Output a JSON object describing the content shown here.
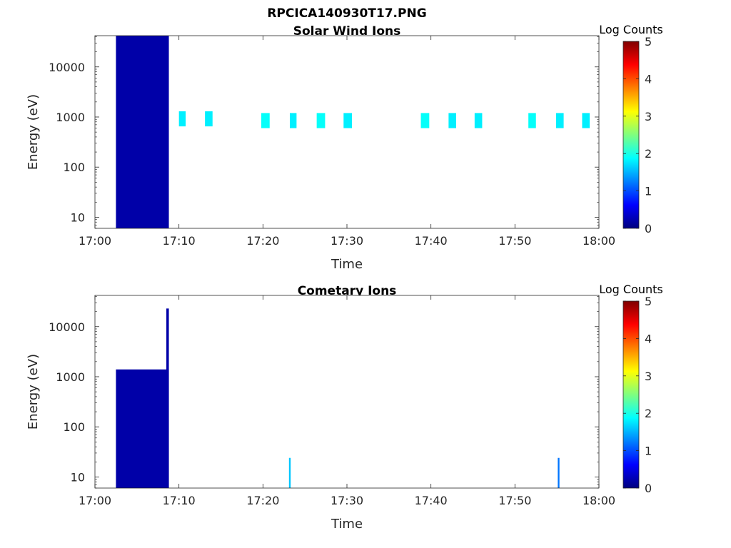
{
  "figure_title": "RPCICA140930T17.PNG",
  "colors": {
    "dark_blue": "#00007F",
    "blue": "#0000FF",
    "light_blue": "#1F8FFF",
    "cyan": "#00E5FF",
    "axis": "#262626"
  },
  "chart_data": [
    {
      "type": "heatmap",
      "title": "Solar Wind Ions",
      "xlabel": "Time",
      "ylabel": "Energy (eV)",
      "x_ticks": [
        "17:00",
        "17:10",
        "17:20",
        "17:30",
        "17:40",
        "17:50",
        "18:00"
      ],
      "x_range_minutes": [
        0,
        60
      ],
      "y_ticks": [
        "10",
        "100",
        "1000",
        "10000"
      ],
      "y_scale": "log",
      "y_range": [
        6,
        42000
      ],
      "colorbar": {
        "title": "Log Counts",
        "ticks": [
          "0",
          "1",
          "2",
          "3",
          "4",
          "5"
        ],
        "range": [
          0,
          5
        ],
        "colormap": "jet"
      },
      "cells": [
        {
          "t0": 2.5,
          "t1": 8.8,
          "e0": 6,
          "e1": 42000,
          "v": 0.2
        },
        {
          "t0": 10.0,
          "t1": 10.8,
          "e0": 650,
          "e1": 1300,
          "v": 1.8
        },
        {
          "t0": 13.1,
          "t1": 14.0,
          "e0": 650,
          "e1": 1300,
          "v": 1.8
        },
        {
          "t0": 19.8,
          "t1": 20.8,
          "e0": 600,
          "e1": 1200,
          "v": 1.9
        },
        {
          "t0": 23.2,
          "t1": 24.0,
          "e0": 600,
          "e1": 1200,
          "v": 1.8
        },
        {
          "t0": 26.4,
          "t1": 27.4,
          "e0": 600,
          "e1": 1200,
          "v": 1.9
        },
        {
          "t0": 29.6,
          "t1": 30.6,
          "e0": 600,
          "e1": 1200,
          "v": 1.8
        },
        {
          "t0": 38.8,
          "t1": 39.8,
          "e0": 600,
          "e1": 1200,
          "v": 1.9
        },
        {
          "t0": 42.1,
          "t1": 43.0,
          "e0": 600,
          "e1": 1200,
          "v": 1.8
        },
        {
          "t0": 45.2,
          "t1": 46.1,
          "e0": 600,
          "e1": 1200,
          "v": 1.8
        },
        {
          "t0": 51.6,
          "t1": 52.5,
          "e0": 600,
          "e1": 1200,
          "v": 1.9
        },
        {
          "t0": 54.9,
          "t1": 55.8,
          "e0": 600,
          "e1": 1200,
          "v": 1.8
        },
        {
          "t0": 58.0,
          "t1": 58.9,
          "e0": 600,
          "e1": 1200,
          "v": 1.8
        }
      ]
    },
    {
      "type": "heatmap",
      "title": "Cometary Ions",
      "xlabel": "Time",
      "ylabel": "Energy (eV)",
      "x_ticks": [
        "17:00",
        "17:10",
        "17:20",
        "17:30",
        "17:40",
        "17:50",
        "18:00"
      ],
      "x_range_minutes": [
        0,
        60
      ],
      "y_ticks": [
        "10",
        "100",
        "1000",
        "10000"
      ],
      "y_scale": "log",
      "y_range": [
        6,
        42000
      ],
      "colorbar": {
        "title": "Log Counts",
        "ticks": [
          "0",
          "1",
          "2",
          "3",
          "4",
          "5"
        ],
        "range": [
          0,
          5
        ],
        "colormap": "jet"
      },
      "cells": [
        {
          "t0": 2.5,
          "t1": 8.8,
          "e0": 6,
          "e1": 1400,
          "v": 0.2
        },
        {
          "t0": 8.5,
          "t1": 8.8,
          "e0": 6,
          "e1": 23000,
          "v": 0.2
        },
        {
          "t0": 23.1,
          "t1": 23.3,
          "e0": 6,
          "e1": 24,
          "v": 1.6
        },
        {
          "t0": 55.1,
          "t1": 55.3,
          "e0": 6,
          "e1": 24,
          "v": 1.2
        }
      ]
    }
  ]
}
